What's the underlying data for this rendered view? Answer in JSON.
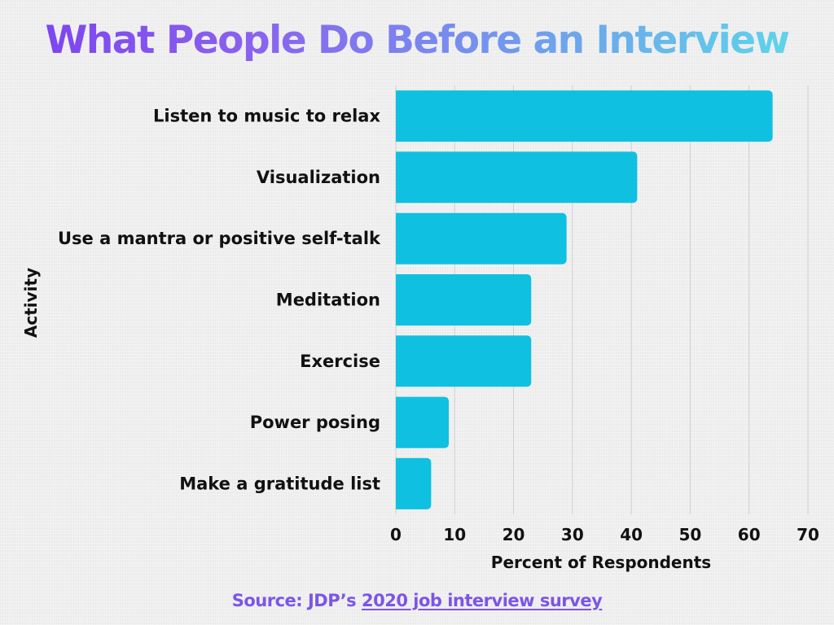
{
  "title": "What People Do Before an Interview",
  "colors": {
    "bar": "#0fc0e1",
    "grid": "#cfcfcf",
    "title_gradient_start": "#7b3ff0",
    "title_gradient_end": "#5cdde8",
    "source_text": "#7c55e6",
    "text": "#111111"
  },
  "source": {
    "prefix": "Source: JDP’s ",
    "link_text": "2020 job interview survey"
  },
  "chart_data": {
    "type": "bar",
    "orientation": "horizontal",
    "title": "What People Do Before an Interview",
    "categories": [
      "Listen to music to relax",
      "Visualization",
      "Use a mantra or positive self-talk",
      "Meditation",
      "Exercise",
      "Power posing",
      "Make a gratitude list"
    ],
    "values": [
      64,
      41,
      29,
      23,
      23,
      9,
      6
    ],
    "xlabel": "Percent of Respondents",
    "ylabel": "Activity",
    "xlim": [
      0,
      70
    ],
    "xticks": [
      0,
      10,
      20,
      30,
      40,
      50,
      60,
      70
    ],
    "grid": true
  }
}
